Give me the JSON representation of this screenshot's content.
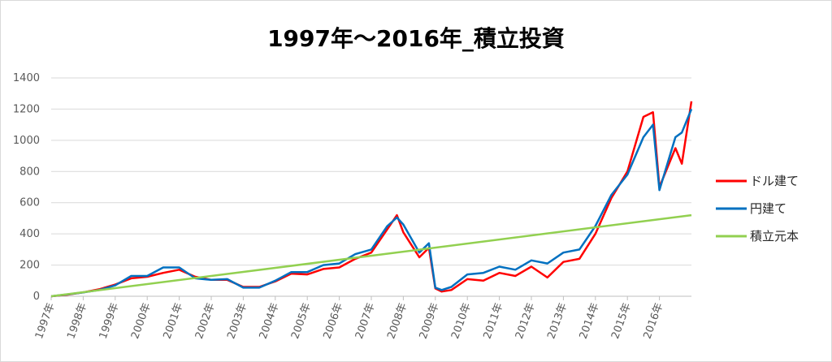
{
  "chart_data": {
    "type": "line",
    "title": "1997年～2016年_積立投資",
    "xlabel": "",
    "ylabel": "",
    "ylim": [
      0,
      1400
    ],
    "y_ticks": [
      "0",
      "200",
      "400",
      "600",
      "800",
      "1000",
      "1200",
      "1400"
    ],
    "x_ticks": [
      "1997年",
      "1998年",
      "1999年",
      "2000年",
      "2001年",
      "2002年",
      "2003年",
      "2004年",
      "2005年",
      "2006年",
      "2007年",
      "2008年",
      "2009年",
      "2010年",
      "2011年",
      "2012年",
      "2013年",
      "2014年",
      "2015年",
      "2016年"
    ],
    "xlim": [
      1997,
      2017
    ],
    "grid": true,
    "legend_position": "right",
    "series": [
      {
        "name": "ドル建て",
        "color": "#ff0000",
        "x": [
          1997.0,
          1997.5,
          1998.0,
          1998.5,
          1999.0,
          1999.5,
          2000.0,
          2000.5,
          2001.0,
          2001.5,
          2002.0,
          2002.5,
          2003.0,
          2003.5,
          2004.0,
          2004.5,
          2005.0,
          2005.5,
          2006.0,
          2006.5,
          2007.0,
          2007.5,
          2007.8,
          2008.0,
          2008.5,
          2008.8,
          2009.0,
          2009.2,
          2009.5,
          2010.0,
          2010.5,
          2011.0,
          2011.5,
          2012.0,
          2012.5,
          2013.0,
          2013.5,
          2014.0,
          2014.5,
          2015.0,
          2015.5,
          2015.8,
          2016.0,
          2016.5,
          2016.7,
          2017.0
        ],
        "values": [
          0,
          10,
          25,
          45,
          75,
          115,
          125,
          150,
          170,
          125,
          105,
          105,
          60,
          60,
          95,
          145,
          140,
          175,
          185,
          240,
          280,
          430,
          520,
          410,
          250,
          310,
          50,
          30,
          40,
          110,
          100,
          150,
          130,
          190,
          120,
          220,
          240,
          400,
          630,
          800,
          1150,
          1180,
          700,
          950,
          850,
          1250
        ]
      },
      {
        "name": "円建て",
        "color": "#0070c0",
        "x": [
          1997.0,
          1997.5,
          1998.0,
          1998.5,
          1999.0,
          1999.5,
          2000.0,
          2000.5,
          2001.0,
          2001.5,
          2002.0,
          2002.5,
          2003.0,
          2003.5,
          2004.0,
          2004.5,
          2005.0,
          2005.5,
          2006.0,
          2006.5,
          2007.0,
          2007.5,
          2007.8,
          2008.0,
          2008.5,
          2008.8,
          2009.0,
          2009.2,
          2009.5,
          2010.0,
          2010.5,
          2011.0,
          2011.5,
          2012.0,
          2012.5,
          2013.0,
          2013.5,
          2014.0,
          2014.5,
          2015.0,
          2015.5,
          2015.8,
          2016.0,
          2016.5,
          2016.7,
          2017.0
        ],
        "values": [
          0,
          12,
          25,
          40,
          70,
          130,
          130,
          185,
          185,
          115,
          105,
          110,
          55,
          55,
          100,
          155,
          155,
          200,
          210,
          270,
          300,
          450,
          505,
          460,
          280,
          340,
          55,
          40,
          60,
          140,
          150,
          190,
          170,
          230,
          210,
          280,
          300,
          450,
          650,
          780,
          1020,
          1100,
          680,
          1020,
          1050,
          1200
        ]
      },
      {
        "name": "積立元本",
        "color": "#92d050",
        "x": [
          1997.0,
          2017.0
        ],
        "values": [
          0,
          520
        ]
      }
    ]
  }
}
